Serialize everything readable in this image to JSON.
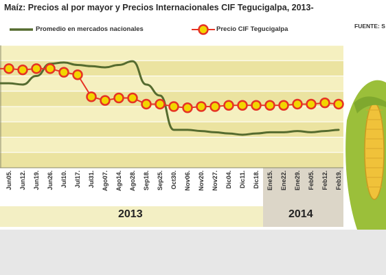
{
  "chart_data": {
    "type": "line",
    "title": "Maíz: Precios al por mayor y Precios Internacionales CIF Tegucigalpa, 2013-",
    "source_label": "FUENTE: S",
    "x_labels": [
      "Jun05.",
      "Jun12.",
      "Jun19.",
      "Jun26.",
      "Jul10.",
      "Jul17.",
      "Jul31.",
      "Ago07.",
      "Ago14.",
      "Ago28.",
      "Sep18.",
      "Sep25.",
      "Oct30.",
      "Nov06.",
      "Nov20.",
      "Nov27.",
      "Dic04.",
      "Dic11.",
      "Dic18.",
      "Ene15.",
      "Ene22.",
      "Ene29.",
      "Feb05.",
      "Feb12.",
      "Feb19."
    ],
    "year_labels": [
      "2013",
      "2014"
    ],
    "ylim": [
      0,
      10
    ],
    "grid": true,
    "legend_position": "top",
    "series": [
      {
        "name": "Promedio en mercados nacionales",
        "color": "#556b2f",
        "values": [
          6.9,
          6.8,
          7.5,
          8.5,
          8.6,
          8.4,
          8.3,
          8.2,
          8.4,
          8.7,
          6.8,
          5.9,
          3.1,
          3.1,
          3.0,
          2.9,
          2.8,
          2.7,
          2.8,
          2.9,
          2.9,
          3.0,
          2.9,
          3.0,
          3.1
        ]
      },
      {
        "name": "Precio CIF Tegucigalpa",
        "color": "#e63324",
        "marker_color": "#f2d500",
        "values": [
          8.1,
          8.0,
          8.1,
          8.1,
          7.8,
          7.6,
          5.8,
          5.5,
          5.7,
          5.7,
          5.2,
          5.2,
          5.0,
          4.9,
          5.0,
          5.0,
          5.1,
          5.1,
          5.1,
          5.1,
          5.1,
          5.2,
          5.2,
          5.3,
          5.2
        ]
      }
    ]
  },
  "colors": {
    "plot_band_light": "#f5f0c0",
    "plot_band_dark": "#ebe3a0",
    "year_band_2013": "#f3efc4",
    "year_band_2014": "#dcd6c8"
  }
}
